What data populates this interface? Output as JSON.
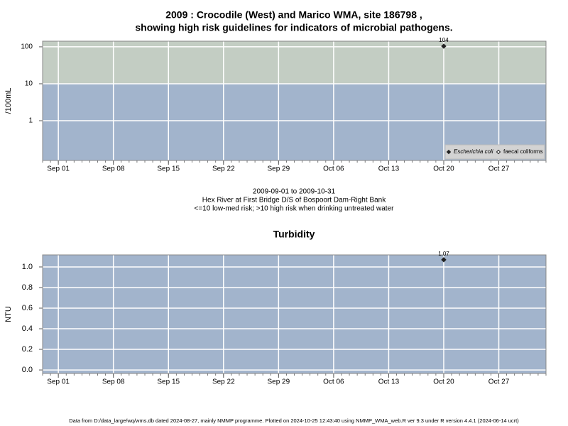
{
  "chart_data": [
    {
      "type": "scatter",
      "title": [
        "2009 : Crocodile (West) and Marico WMA, site 186798 ,",
        "showing high risk guidelines for indicators of microbial pathogens."
      ],
      "ylabel": "/100mL",
      "log_y": true,
      "ylim": [
        0.084,
        142
      ],
      "yticks": [
        1,
        10,
        100
      ],
      "xlim": [
        "Aug 30",
        "Nov 02"
      ],
      "xticks": [
        "Sep 01",
        "Sep 08",
        "Sep 15",
        "Sep 22",
        "Sep 29",
        "Oct 06",
        "Oct 13",
        "Oct 20",
        "Oct 27"
      ],
      "risk_threshold": 10,
      "band_colors": [
        "#a2b4cc",
        "#c3cdc3"
      ],
      "grid": true,
      "legend": "lower right",
      "series": [
        {
          "name": "Escherichia coli",
          "color": "#222222",
          "marker": "filled",
          "x": [
            "Oct 20"
          ],
          "values": [
            104
          ]
        },
        {
          "name": "faecal coliforms",
          "color": "#222222",
          "marker": "open",
          "x": [],
          "values": []
        }
      ],
      "notes": [
        "2009-09-01 to 2009-10-31",
        "Hex River at First Bridge D/S of Bospoort Dam-Right Bank",
        "<=10 low-med risk; >10 high risk when drinking untreated water"
      ]
    },
    {
      "type": "scatter",
      "title": [
        "Turbidity"
      ],
      "ylabel": "NTU",
      "log_y": false,
      "ylim": [
        -0.034,
        1.117
      ],
      "yticks": [
        {
          "value": 0,
          "label": "0.0"
        },
        0.2,
        0.4,
        0.6,
        0.8,
        {
          "value": 1,
          "label": "1.0"
        }
      ],
      "xlim": [
        "Aug 30",
        "Nov 02"
      ],
      "xticks": [
        "Sep 01",
        "Sep 08",
        "Sep 15",
        "Sep 22",
        "Sep 29",
        "Oct 06",
        "Oct 13",
        "Oct 20",
        "Oct 27"
      ],
      "band_colors": [
        "#a2b4cc"
      ],
      "grid": true,
      "series": [
        {
          "color": "#222222",
          "marker": "filled",
          "x": [
            "Oct 20"
          ],
          "values": [
            1.07
          ]
        }
      ]
    }
  ],
  "footer": "Data from D:/data_large/wq/wms.db dated 2024-08-27, mainly NMMP programme. Plotted on 2024-10-25 12:43:40 using NMMP_WMA_web.R ver 9.3 under R version 4.4.1 (2024-06-14 ucrt)"
}
